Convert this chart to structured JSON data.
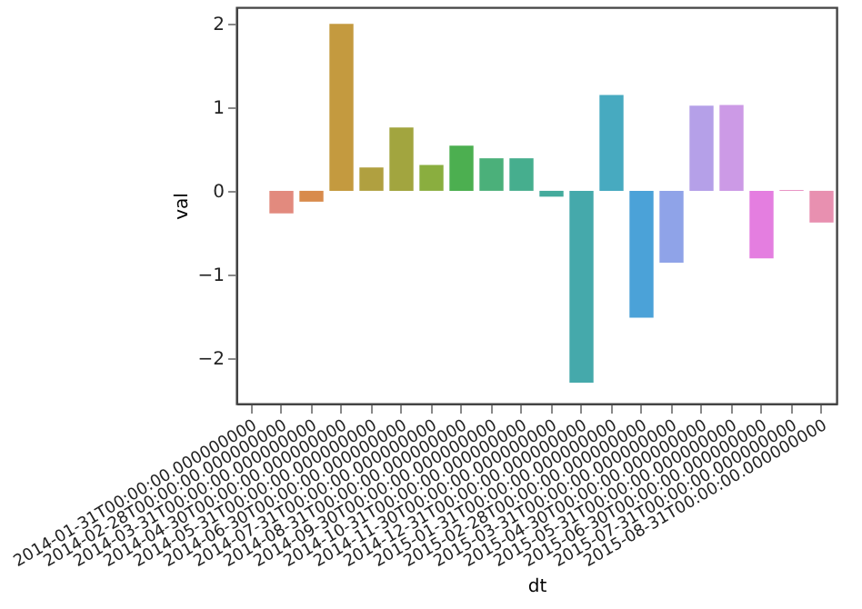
{
  "chart_data": {
    "type": "bar",
    "xlabel": "dt",
    "ylabel": "val",
    "categories": [
      "2014-01-31T00:00:00.000000000",
      "2014-02-28T00:00:00.000000000",
      "2014-03-31T00:00:00.000000000",
      "2014-04-30T00:00:00.000000000",
      "2014-05-31T00:00:00.000000000",
      "2014-06-30T00:00:00.000000000",
      "2014-07-31T00:00:00.000000000",
      "2014-08-31T00:00:00.000000000",
      "2014-09-30T00:00:00.000000000",
      "2014-10-31T00:00:00.000000000",
      "2014-11-30T00:00:00.000000000",
      "2014-12-31T00:00:00.000000000",
      "2015-01-31T00:00:00.000000000",
      "2015-02-28T00:00:00.000000000",
      "2015-03-31T00:00:00.000000000",
      "2015-04-30T00:00:00.000000000",
      "2015-05-31T00:00:00.000000000",
      "2015-06-30T00:00:00.000000000",
      "2015-07-31T00:00:00.000000000",
      "2015-08-31T00:00:00.000000000"
    ],
    "values": [
      null,
      -0.27,
      -0.13,
      2.0,
      0.28,
      0.76,
      0.31,
      0.54,
      0.39,
      0.39,
      -0.07,
      -2.3,
      1.15,
      -1.52,
      -0.86,
      1.02,
      1.03,
      -0.81,
      0.01,
      -0.38
    ],
    "colors": [
      "#f77189",
      "#e28a7e",
      "#d88b4c",
      "#c49a3f",
      "#b0a040",
      "#a2a53f",
      "#8aae3f",
      "#4caf50",
      "#4bb07a",
      "#46ae8e",
      "#44ab9c",
      "#45a9ab",
      "#47aac0",
      "#4ba2d8",
      "#8fa3e8",
      "#b5a0e8",
      "#cc9ae6",
      "#e47ee0",
      "#e88cc0",
      "#e890b0"
    ],
    "ylim": [
      -2.55,
      2.2
    ],
    "yticks": [
      -2,
      -1,
      0,
      1,
      2
    ],
    "grid": false
  }
}
